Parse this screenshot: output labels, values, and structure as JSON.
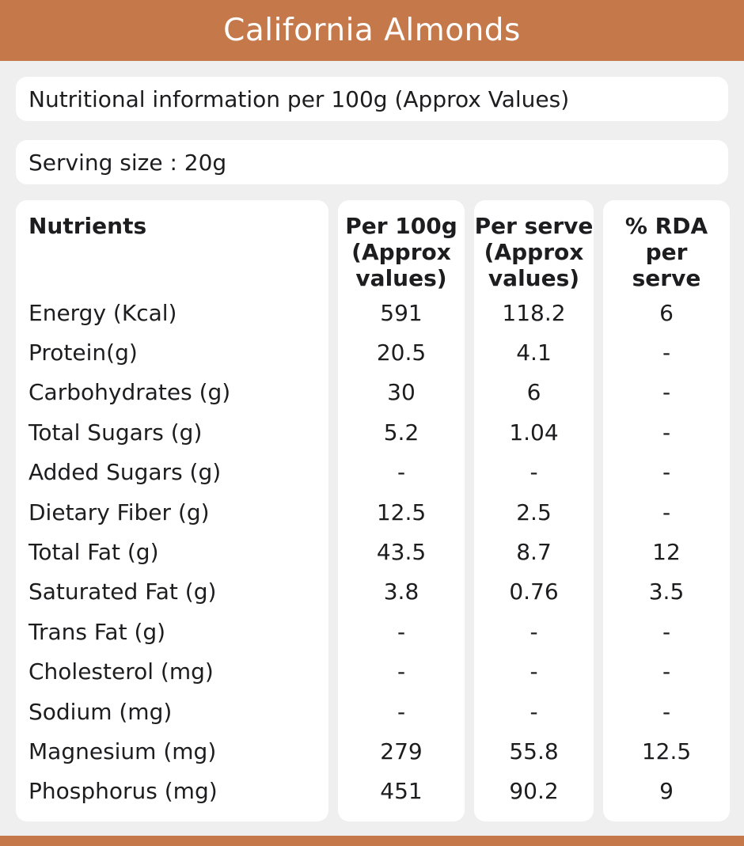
{
  "header": {
    "title": "California Almonds"
  },
  "info_bar": {
    "text": "Nutritional information per 100g (Approx Values)"
  },
  "serving_bar": {
    "text": "Serving size : 20g"
  },
  "table": {
    "columns": {
      "nutrients": "Nutrients",
      "per_100g": "Per 100g\n(Approx\nvalues)",
      "per_serve": "Per serve\n(Approx\nvalues)",
      "rda": "% RDA\nper\nserve"
    },
    "rows": [
      {
        "nutrient": "Energy (Kcal)",
        "per_100g": "591",
        "per_serve": "118.2",
        "rda": "6"
      },
      {
        "nutrient": "Protein(g)",
        "per_100g": "20.5",
        "per_serve": "4.1",
        "rda": "-"
      },
      {
        "nutrient": "Carbohydrates (g)",
        "per_100g": "30",
        "per_serve": "6",
        "rda": "-"
      },
      {
        "nutrient": "Total Sugars (g)",
        "per_100g": "5.2",
        "per_serve": "1.04",
        "rda": "-"
      },
      {
        "nutrient": "Added Sugars (g)",
        "per_100g": "-",
        "per_serve": "-",
        "rda": "-"
      },
      {
        "nutrient": "Dietary Fiber (g)",
        "per_100g": "12.5",
        "per_serve": "2.5",
        "rda": "-"
      },
      {
        "nutrient": "Total Fat (g)",
        "per_100g": "43.5",
        "per_serve": "8.7",
        "rda": "12"
      },
      {
        "nutrient": "Saturated Fat (g)",
        "per_100g": "3.8",
        "per_serve": "0.76",
        "rda": "3.5"
      },
      {
        "nutrient": "Trans Fat (g)",
        "per_100g": "-",
        "per_serve": "-",
        "rda": "-"
      },
      {
        "nutrient": "Cholesterol (mg)",
        "per_100g": "-",
        "per_serve": "-",
        "rda": "-"
      },
      {
        "nutrient": "Sodium (mg)",
        "per_100g": "-",
        "per_serve": "-",
        "rda": "-"
      },
      {
        "nutrient": "Magnesium (mg)",
        "per_100g": "279",
        "per_serve": "55.8",
        "rda": "12.5"
      },
      {
        "nutrient": "Phosphorus (mg)",
        "per_100g": "451",
        "per_serve": "90.2",
        "rda": "9"
      }
    ]
  },
  "colors": {
    "accent": "#c5784a",
    "background": "#efefef",
    "card": "#ffffff",
    "text": "#1d1d1f",
    "title_text": "#ffffff"
  }
}
